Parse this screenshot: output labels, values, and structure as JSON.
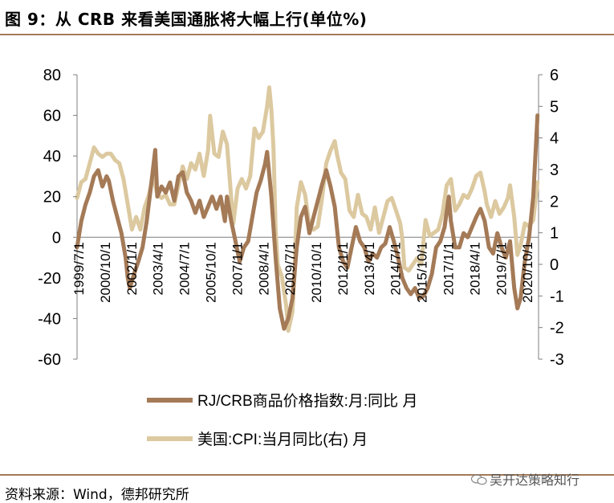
{
  "title": "图 9：从 CRB 来看美国通胀将大幅上行(单位%)",
  "source": "资料来源：Wind，德邦研究所",
  "watermark": "吴开达策略知行",
  "colors": {
    "crb": "#a47a57",
    "cpi": "#dcc9a0",
    "rule": "#a27a57",
    "axis": "#7f7f7f"
  },
  "chart_data": {
    "type": "line",
    "x_tick_labels": [
      "1999/7/1",
      "2000/10/1",
      "2002/1/1",
      "2003/4/1",
      "2004/7/1",
      "2005/10/1",
      "2007/1/1",
      "2008/4/1",
      "2009/7/1",
      "2010/10/1",
      "2012/1/1",
      "2013/4/1",
      "2014/7/1",
      "2015/10/1",
      "2017/1/1",
      "2018/4/1",
      "2019/7/1",
      "2020/10/1"
    ],
    "y_left": {
      "min": -60,
      "max": 80,
      "ticks": [
        80,
        60,
        40,
        20,
        0,
        -20,
        -40,
        -60
      ]
    },
    "y_right": {
      "min": -3,
      "max": 6,
      "ticks": [
        6,
        5,
        4,
        3,
        2,
        1,
        0,
        -1,
        -2,
        -3
      ]
    },
    "x_start": "1999-07",
    "legend": [
      "RJ/CRB商品价格指数:月:同比 月",
      "美国:CPI:当月同比(右) 月"
    ],
    "series": [
      {
        "name": "RJ/CRB商品价格指数:月:同比 月",
        "axis": "left",
        "points": [
          [
            1999.5,
            -5
          ],
          [
            1999.7,
            8
          ],
          [
            1999.9,
            16
          ],
          [
            2000.1,
            22
          ],
          [
            2000.3,
            30
          ],
          [
            2000.5,
            33
          ],
          [
            2000.7,
            25
          ],
          [
            2000.9,
            30
          ],
          [
            2001.0,
            28
          ],
          [
            2001.2,
            18
          ],
          [
            2001.4,
            10
          ],
          [
            2001.6,
            2
          ],
          [
            2001.8,
            -10
          ],
          [
            2001.9,
            -20
          ],
          [
            2002.0,
            -25
          ],
          [
            2002.2,
            -18
          ],
          [
            2002.4,
            -12
          ],
          [
            2002.6,
            -5
          ],
          [
            2002.8,
            8
          ],
          [
            2003.0,
            25
          ],
          [
            2003.2,
            43
          ],
          [
            2003.3,
            20
          ],
          [
            2003.5,
            25
          ],
          [
            2003.7,
            22
          ],
          [
            2003.9,
            27
          ],
          [
            2004.1,
            18
          ],
          [
            2004.3,
            30
          ],
          [
            2004.5,
            32
          ],
          [
            2004.7,
            22
          ],
          [
            2004.9,
            18
          ],
          [
            2005.1,
            12
          ],
          [
            2005.3,
            18
          ],
          [
            2005.5,
            10
          ],
          [
            2005.7,
            15
          ],
          [
            2005.9,
            20
          ],
          [
            2006.1,
            14
          ],
          [
            2006.3,
            20
          ],
          [
            2006.5,
            8
          ],
          [
            2006.6,
            20
          ],
          [
            2006.8,
            8
          ],
          [
            2007.0,
            -2
          ],
          [
            2007.2,
            -12
          ],
          [
            2007.4,
            -5
          ],
          [
            2007.6,
            -2
          ],
          [
            2007.8,
            10
          ],
          [
            2008.0,
            22
          ],
          [
            2008.2,
            28
          ],
          [
            2008.4,
            36
          ],
          [
            2008.5,
            42
          ],
          [
            2008.7,
            20
          ],
          [
            2008.9,
            -10
          ],
          [
            2009.1,
            -35
          ],
          [
            2009.3,
            -45
          ],
          [
            2009.5,
            -40
          ],
          [
            2009.7,
            -30
          ],
          [
            2009.9,
            -5
          ],
          [
            2010.1,
            10
          ],
          [
            2010.3,
            15
          ],
          [
            2010.5,
            2
          ],
          [
            2010.7,
            10
          ],
          [
            2010.9,
            18
          ],
          [
            2011.1,
            26
          ],
          [
            2011.3,
            33
          ],
          [
            2011.5,
            25
          ],
          [
            2011.7,
            15
          ],
          [
            2011.9,
            -5
          ],
          [
            2012.1,
            -12
          ],
          [
            2012.3,
            -15
          ],
          [
            2012.5,
            -5
          ],
          [
            2012.7,
            5
          ],
          [
            2012.9,
            -2
          ],
          [
            2013.1,
            -5
          ],
          [
            2013.3,
            -12
          ],
          [
            2013.5,
            -8
          ],
          [
            2013.7,
            -10
          ],
          [
            2013.9,
            -5
          ],
          [
            2014.1,
            -3
          ],
          [
            2014.3,
            5
          ],
          [
            2014.5,
            -2
          ],
          [
            2014.7,
            -10
          ],
          [
            2014.9,
            -20
          ],
          [
            2015.1,
            -25
          ],
          [
            2015.3,
            -28
          ],
          [
            2015.5,
            -25
          ],
          [
            2015.7,
            -30
          ],
          [
            2015.9,
            -29
          ],
          [
            2016.1,
            -25
          ],
          [
            2016.3,
            -18
          ],
          [
            2016.5,
            -5
          ],
          [
            2016.7,
            -2
          ],
          [
            2016.9,
            5
          ],
          [
            2017.1,
            20
          ],
          [
            2017.2,
            8
          ],
          [
            2017.4,
            -5
          ],
          [
            2017.6,
            -5
          ],
          [
            2017.8,
            2
          ],
          [
            2018.0,
            0
          ],
          [
            2018.2,
            5
          ],
          [
            2018.4,
            10
          ],
          [
            2018.6,
            14
          ],
          [
            2018.8,
            8
          ],
          [
            2019.0,
            -5
          ],
          [
            2019.2,
            -8
          ],
          [
            2019.4,
            2
          ],
          [
            2019.6,
            -5
          ],
          [
            2019.8,
            -10
          ],
          [
            2020.0,
            -2
          ],
          [
            2020.2,
            -25
          ],
          [
            2020.35,
            -35
          ],
          [
            2020.5,
            -30
          ],
          [
            2020.7,
            -12
          ],
          [
            2020.9,
            0
          ],
          [
            2021.1,
            20
          ],
          [
            2021.3,
            60
          ]
        ]
      },
      {
        "name": "美国:CPI:当月同比(右) 月",
        "axis": "right",
        "points": [
          [
            1999.5,
            2.1
          ],
          [
            1999.7,
            2.6
          ],
          [
            1999.9,
            2.7
          ],
          [
            2000.1,
            3.2
          ],
          [
            2000.3,
            3.7
          ],
          [
            2000.5,
            3.5
          ],
          [
            2000.7,
            3.4
          ],
          [
            2000.9,
            3.5
          ],
          [
            2001.1,
            3.5
          ],
          [
            2001.3,
            3.3
          ],
          [
            2001.5,
            3.2
          ],
          [
            2001.7,
            2.7
          ],
          [
            2001.9,
            1.9
          ],
          [
            2002.1,
            1.1
          ],
          [
            2002.3,
            1.5
          ],
          [
            2002.5,
            1.1
          ],
          [
            2002.7,
            1.8
          ],
          [
            2002.9,
            2.2
          ],
          [
            2003.1,
            2.8
          ],
          [
            2003.3,
            2.2
          ],
          [
            2003.5,
            2.1
          ],
          [
            2003.7,
            2.2
          ],
          [
            2003.9,
            1.9
          ],
          [
            2004.1,
            1.9
          ],
          [
            2004.3,
            2.5
          ],
          [
            2004.5,
            3.1
          ],
          [
            2004.7,
            2.7
          ],
          [
            2004.9,
            3.2
          ],
          [
            2005.1,
            3.0
          ],
          [
            2005.3,
            3.5
          ],
          [
            2005.5,
            2.8
          ],
          [
            2005.7,
            3.6
          ],
          [
            2005.8,
            4.7
          ],
          [
            2006.0,
            3.5
          ],
          [
            2006.2,
            3.4
          ],
          [
            2006.4,
            4.2
          ],
          [
            2006.6,
            3.8
          ],
          [
            2006.8,
            2.1
          ],
          [
            2006.9,
            1.3
          ],
          [
            2007.1,
            2.4
          ],
          [
            2007.3,
            2.7
          ],
          [
            2007.5,
            2.4
          ],
          [
            2007.7,
            2.8
          ],
          [
            2007.9,
            4.3
          ],
          [
            2008.1,
            4.0
          ],
          [
            2008.3,
            4.2
          ],
          [
            2008.5,
            5.0
          ],
          [
            2008.6,
            5.6
          ],
          [
            2008.7,
            4.9
          ],
          [
            2008.8,
            3.7
          ],
          [
            2008.9,
            1.1
          ],
          [
            2009.0,
            0.0
          ],
          [
            2009.2,
            -0.4
          ],
          [
            2009.4,
            -1.3
          ],
          [
            2009.5,
            -2.1
          ],
          [
            2009.7,
            -1.5
          ],
          [
            2009.8,
            -0.2
          ],
          [
            2009.9,
            1.8
          ],
          [
            2010.1,
            2.6
          ],
          [
            2010.3,
            2.2
          ],
          [
            2010.5,
            1.2
          ],
          [
            2010.7,
            1.1
          ],
          [
            2010.9,
            1.2
          ],
          [
            2011.1,
            2.1
          ],
          [
            2011.3,
            3.2
          ],
          [
            2011.5,
            3.6
          ],
          [
            2011.7,
            3.9
          ],
          [
            2011.8,
            3.5
          ],
          [
            2012.0,
            2.9
          ],
          [
            2012.2,
            2.7
          ],
          [
            2012.4,
            1.7
          ],
          [
            2012.6,
            1.5
          ],
          [
            2012.8,
            2.2
          ],
          [
            2013.0,
            1.6
          ],
          [
            2013.2,
            1.5
          ],
          [
            2013.4,
            1.1
          ],
          [
            2013.6,
            1.8
          ],
          [
            2013.8,
            1.0
          ],
          [
            2014.0,
            1.5
          ],
          [
            2014.2,
            2.0
          ],
          [
            2014.4,
            2.1
          ],
          [
            2014.6,
            1.7
          ],
          [
            2014.8,
            1.3
          ],
          [
            2014.9,
            0.8
          ],
          [
            2015.0,
            -0.1
          ],
          [
            2015.2,
            -0.2
          ],
          [
            2015.4,
            0.0
          ],
          [
            2015.6,
            0.2
          ],
          [
            2015.8,
            0.0
          ],
          [
            2016.0,
            1.4
          ],
          [
            2016.2,
            0.9
          ],
          [
            2016.4,
            1.0
          ],
          [
            2016.6,
            1.1
          ],
          [
            2016.8,
            1.6
          ],
          [
            2017.0,
            2.5
          ],
          [
            2017.2,
            2.7
          ],
          [
            2017.4,
            1.7
          ],
          [
            2017.6,
            1.9
          ],
          [
            2017.8,
            2.2
          ],
          [
            2018.0,
            2.1
          ],
          [
            2018.2,
            2.4
          ],
          [
            2018.4,
            2.8
          ],
          [
            2018.6,
            2.9
          ],
          [
            2018.8,
            2.3
          ],
          [
            2018.9,
            1.9
          ],
          [
            2019.1,
            1.5
          ],
          [
            2019.3,
            2.0
          ],
          [
            2019.5,
            1.6
          ],
          [
            2019.7,
            1.8
          ],
          [
            2019.9,
            2.1
          ],
          [
            2020.0,
            2.5
          ],
          [
            2020.2,
            1.5
          ],
          [
            2020.35,
            0.3
          ],
          [
            2020.5,
            0.6
          ],
          [
            2020.7,
            1.3
          ],
          [
            2020.9,
            1.2
          ],
          [
            2021.1,
            1.4
          ],
          [
            2021.3,
            2.6
          ]
        ]
      }
    ]
  }
}
